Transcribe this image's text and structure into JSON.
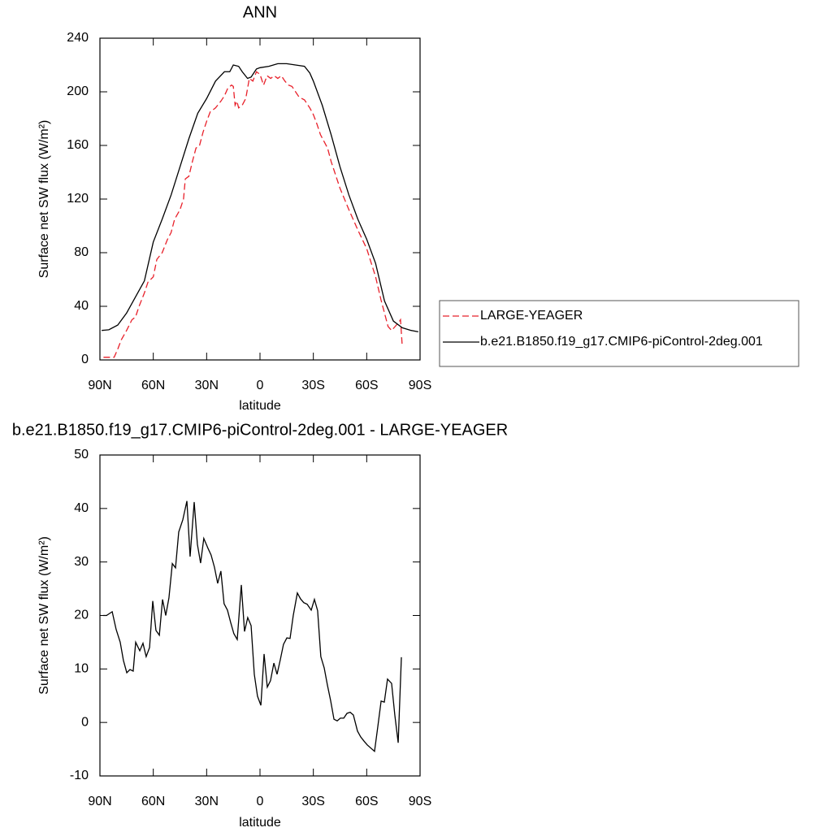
{
  "chart_data": [
    {
      "type": "line",
      "title": "ANN",
      "xlabel": "latitude",
      "ylabel": "Surface net SW flux (W/m²)",
      "xlim": [
        90,
        -90
      ],
      "ylim": [
        0,
        240
      ],
      "xticks": [
        {
          "value": 90,
          "label": "90N"
        },
        {
          "value": 60,
          "label": "60N"
        },
        {
          "value": 30,
          "label": "30N"
        },
        0,
        {
          "value": -30,
          "label": "30S"
        },
        {
          "value": -60,
          "label": "60S"
        },
        {
          "value": -90,
          "label": "90S"
        }
      ],
      "yticks": [
        0,
        40,
        80,
        120,
        160,
        200,
        240
      ],
      "legend": "right",
      "series": [
        {
          "name": "LARGE-YEAGER",
          "color": "#e8202a",
          "line_style": "dashed",
          "x": [
            88,
            85,
            82,
            80,
            78,
            75,
            72,
            70,
            68,
            65,
            63,
            60,
            58,
            55,
            52,
            50,
            48,
            45,
            43,
            42,
            40,
            38,
            36,
            34,
            32,
            30,
            28,
            25,
            22,
            20,
            18,
            16,
            15,
            14,
            13,
            12,
            10,
            8,
            6,
            4,
            2,
            0,
            -2,
            -4,
            -6,
            -8,
            -10,
            -12,
            -14,
            -16,
            -18,
            -20,
            -22,
            -25,
            -28,
            -30,
            -32,
            -34,
            -36,
            -38,
            -40,
            -45,
            -50,
            -55,
            -60,
            -65,
            -68,
            -70,
            -72,
            -74,
            -76,
            -78,
            -79,
            -80
          ],
          "values": [
            2,
            2,
            2,
            8,
            15,
            22,
            30,
            32,
            40,
            50,
            58,
            62,
            75,
            80,
            90,
            95,
            105,
            112,
            120,
            135,
            137,
            148,
            158,
            160,
            170,
            178,
            185,
            188,
            193,
            197,
            203,
            205,
            204,
            190,
            193,
            188,
            190,
            195,
            210,
            208,
            215,
            213,
            205,
            212,
            210,
            212,
            210,
            212,
            208,
            205,
            204,
            200,
            196,
            194,
            188,
            183,
            176,
            168,
            163,
            158,
            148,
            128,
            112,
            97,
            83,
            62,
            45,
            35,
            25,
            22,
            25,
            28,
            30,
            10
          ]
        },
        {
          "name": "b.e21.B1850.f19_g17.CMIP6-piControl-2deg.001",
          "color": "#000000",
          "line_style": "solid",
          "x": [
            89,
            85,
            80,
            75,
            70,
            65,
            60,
            55,
            50,
            45,
            40,
            35,
            30,
            25,
            20,
            17,
            15,
            12,
            10,
            7,
            5,
            2,
            0,
            -5,
            -10,
            -15,
            -20,
            -25,
            -28,
            -30,
            -35,
            -40,
            -45,
            -50,
            -55,
            -60,
            -65,
            -70,
            -72,
            -75,
            -80,
            -85,
            -89
          ],
          "values": [
            22,
            22.5,
            26,
            35,
            47,
            59,
            88,
            105,
            123,
            144,
            165,
            184,
            195,
            208,
            215,
            215,
            220,
            219,
            215,
            210,
            211,
            217,
            218,
            219,
            221,
            221,
            220,
            219,
            214,
            208,
            190,
            168,
            144,
            123,
            105,
            90,
            72,
            44,
            38,
            29,
            24,
            22,
            21
          ]
        }
      ]
    },
    {
      "type": "line",
      "title": "b.e21.B1850.f19_g17.CMIP6-piControl-2deg.001 - LARGE-YEAGER",
      "xlabel": "latitude",
      "ylabel": "Surface net SW flux (W/m²)",
      "xlim": [
        90,
        -90
      ],
      "ylim": [
        -10,
        50
      ],
      "xticks": [
        {
          "value": 90,
          "label": "90N"
        },
        {
          "value": 60,
          "label": "60N"
        },
        {
          "value": 30,
          "label": "30N"
        },
        0,
        {
          "value": -30,
          "label": "30S"
        },
        {
          "value": -60,
          "label": "60S"
        },
        {
          "value": -90,
          "label": "90S"
        }
      ],
      "yticks": [
        -10,
        0,
        10,
        20,
        30,
        40,
        50
      ],
      "x": [
        88.2,
        86.3,
        83.1,
        80.9,
        78.6,
        76.8,
        74.9,
        73.1,
        71.3,
        69.9,
        67.6,
        65.8,
        64.0,
        62.1,
        60.3,
        58.5,
        56.6,
        54.8,
        53.0,
        51.2,
        49.3,
        47.5,
        45.7,
        43.4,
        41.1,
        39.3,
        37.0,
        35.2,
        33.4,
        31.6,
        29.3,
        27.5,
        25.6,
        23.8,
        22.0,
        20.2,
        18.3,
        16.5,
        14.7,
        12.8,
        10.5,
        8.7,
        6.9,
        5.0,
        3.2,
        1.4,
        -0.5,
        -2.3,
        -4.1,
        -5.9,
        -7.8,
        -9.6,
        -11.4,
        -13.2,
        -15.1,
        -16.9,
        -18.7,
        -21.0,
        -22.8,
        -24.6,
        -26.5,
        -28.8,
        -30.6,
        -32.4,
        -34.2,
        -36.1,
        -37.9,
        -39.7,
        -41.6,
        -43.4,
        -45.2,
        -47.1,
        -48.9,
        -50.7,
        -52.5,
        -54.8,
        -56.6,
        -58.5,
        -60.3,
        -64.4,
        -66.2,
        -68.1,
        -69.9,
        -71.7,
        -74.0,
        -75.8,
        -77.7,
        -79.5
      ],
      "series": [
        {
          "color": "#000000",
          "line_style": "solid",
          "values": [
            20,
            20,
            20.7,
            17.4,
            15,
            11.6,
            9.3,
            9.9,
            9.6,
            15,
            13.4,
            14.8,
            12.3,
            14,
            22.7,
            17.2,
            16.3,
            23,
            20,
            23.3,
            29.7,
            28.9,
            35.6,
            37.9,
            41.4,
            31,
            41.2,
            33.3,
            29.8,
            34.4,
            32.6,
            31.3,
            29,
            26,
            28.3,
            22.2,
            21,
            18.7,
            16.6,
            15.5,
            25.7,
            17,
            19.6,
            18.1,
            9,
            4.9,
            3.2,
            12.8,
            6.6,
            7.8,
            11.1,
            9,
            11.7,
            14.6,
            15.8,
            15.7,
            20,
            24.2,
            23.1,
            22.4,
            22.1,
            21,
            23,
            20.9,
            12.3,
            10.2,
            7,
            4.1,
            0.6,
            0.3,
            0.8,
            0.8,
            1.7,
            1.9,
            1.4,
            -1.6,
            -2.7,
            -3.5,
            -4.2,
            -5.4,
            -0.9,
            4,
            3.8,
            8.1,
            7.3,
            1.4,
            -3.8,
            12.2
          ]
        }
      ]
    }
  ]
}
